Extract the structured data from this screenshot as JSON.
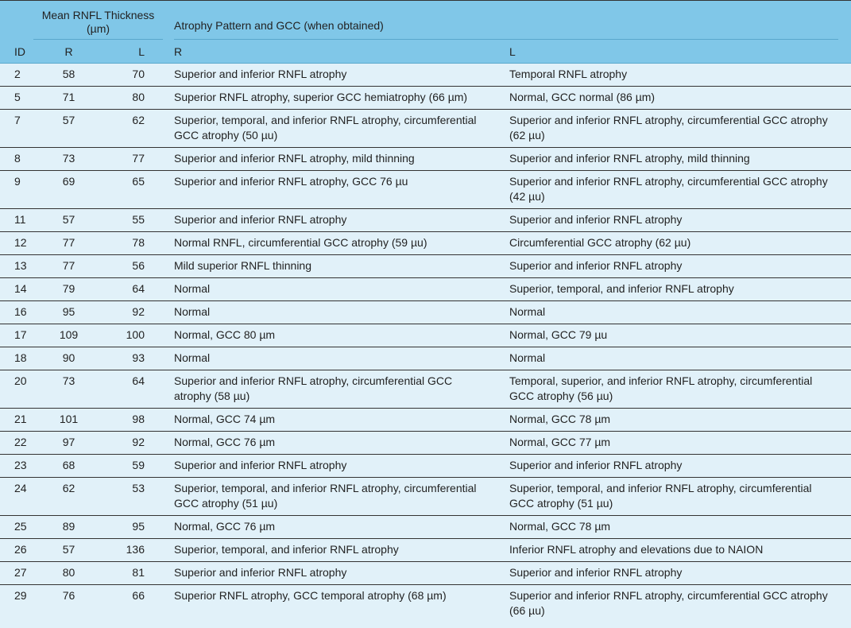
{
  "header": {
    "group1": "Mean RNFL Thickness (µm)",
    "group2": "Atrophy Pattern and GCC (when obtained)",
    "columns": [
      "ID",
      "R",
      "L",
      "R",
      "L"
    ]
  },
  "rows": [
    [
      2,
      58,
      70,
      "Superior and inferior RNFL atrophy",
      "Temporal RNFL atrophy"
    ],
    [
      5,
      71,
      80,
      "Superior RNFL atrophy, superior GCC hemiatrophy (66 µm)",
      "Normal, GCC normal (86 µm)"
    ],
    [
      7,
      57,
      62,
      "Superior, temporal, and inferior RNFL atrophy, circumferential GCC atrophy (50 µu)",
      "Superior and inferior RNFL atrophy, circumferential GCC atrophy (62 µu)"
    ],
    [
      8,
      73,
      77,
      "Superior and inferior RNFL atrophy, mild thinning",
      "Superior and inferior RNFL atrophy, mild thinning"
    ],
    [
      9,
      69,
      65,
      "Superior and inferior RNFL atrophy, GCC 76 µu",
      "Superior and inferior RNFL atrophy, circumferential GCC atrophy (42 µu)"
    ],
    [
      11,
      57,
      55,
      "Superior and inferior RNFL atrophy",
      "Superior and inferior RNFL atrophy"
    ],
    [
      12,
      77,
      78,
      "Normal RNFL, circumferential GCC atrophy (59 µu)",
      "Circumferential GCC atrophy (62 µu)"
    ],
    [
      13,
      77,
      56,
      "Mild superior RNFL thinning",
      "Superior and inferior RNFL atrophy"
    ],
    [
      14,
      79,
      64,
      "Normal",
      "Superior, temporal, and inferior RNFL atrophy"
    ],
    [
      16,
      95,
      92,
      "Normal",
      "Normal"
    ],
    [
      17,
      109,
      100,
      "Normal, GCC 80 µm",
      "Normal, GCC 79 µu"
    ],
    [
      18,
      90,
      93,
      "Normal",
      "Normal"
    ],
    [
      20,
      73,
      64,
      "Superior and inferior RNFL atrophy, circumferential GCC atrophy (58 µu)",
      "Temporal, superior, and inferior RNFL atrophy, circumferential GCC atrophy (56 µu)"
    ],
    [
      21,
      101,
      98,
      "Normal, GCC 74 µm",
      "Normal, GCC 78 µm"
    ],
    [
      22,
      97,
      92,
      "Normal, GCC 76 µm",
      "Normal, GCC 77 µm"
    ],
    [
      23,
      68,
      59,
      "Superior and inferior RNFL atrophy",
      "Superior and inferior RNFL atrophy"
    ],
    [
      24,
      62,
      53,
      "Superior, temporal, and inferior RNFL atrophy, circumferential GCC atrophy (51 µu)",
      "Superior, temporal, and inferior RNFL atrophy, circumferential GCC atrophy (51 µu)"
    ],
    [
      25,
      89,
      95,
      "Normal, GCC 76 µm",
      "Normal, GCC 78 µm"
    ],
    [
      26,
      57,
      136,
      "Superior, temporal, and inferior RNFL atrophy",
      "Inferior RNFL atrophy and elevations due to NAION"
    ],
    [
      27,
      80,
      81,
      "Superior and inferior RNFL atrophy",
      "Superior and inferior RNFL atrophy"
    ],
    [
      29,
      76,
      66,
      "Superior RNFL atrophy, GCC temporal atrophy (68 µm)",
      "Superior and inferior RNFL atrophy, circumferential GCC atrophy (66 µu)"
    ]
  ]
}
